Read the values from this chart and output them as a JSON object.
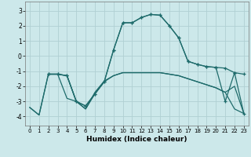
{
  "xlabel": "Humidex (Indice chaleur)",
  "bg_color": "#cce8ea",
  "grid_color": "#b0d0d3",
  "line_color": "#1e6b6b",
  "xlim": [
    -0.5,
    23.5
  ],
  "ylim": [
    -4.6,
    3.6
  ],
  "yticks": [
    -4,
    -3,
    -2,
    -1,
    0,
    1,
    2,
    3
  ],
  "xticks": [
    0,
    1,
    2,
    3,
    4,
    5,
    6,
    7,
    8,
    9,
    10,
    11,
    12,
    13,
    14,
    15,
    16,
    17,
    18,
    19,
    20,
    21,
    22,
    23
  ],
  "lines": [
    {
      "x": [
        0,
        1,
        2,
        3,
        4,
        5,
        6,
        7,
        8,
        9,
        10,
        11,
        12,
        13,
        14,
        15,
        16,
        17,
        18,
        19,
        20,
        21,
        22,
        23
      ],
      "y": [
        -3.4,
        -3.9,
        -1.2,
        -1.2,
        -1.3,
        -3.0,
        -3.5,
        -2.5,
        -1.7,
        -1.3,
        -1.1,
        -1.1,
        -1.1,
        -1.1,
        -1.1,
        -1.2,
        -1.3,
        -1.5,
        -1.7,
        -1.9,
        -2.1,
        -2.4,
        -3.5,
        -3.8
      ],
      "marker": false,
      "linewidth": 0.9
    },
    {
      "x": [
        0,
        1,
        2,
        3,
        4,
        5,
        6,
        7,
        8,
        9,
        10,
        11,
        12,
        13,
        14,
        15,
        16,
        17,
        18,
        19,
        20,
        21,
        22,
        23
      ],
      "y": [
        -3.4,
        -3.9,
        -1.2,
        -1.2,
        -2.8,
        -3.0,
        -3.5,
        -2.4,
        -1.65,
        -1.3,
        -1.1,
        -1.1,
        -1.1,
        -1.1,
        -1.1,
        -1.2,
        -1.3,
        -1.5,
        -1.7,
        -1.9,
        -2.1,
        -2.4,
        -2.0,
        -3.8
      ],
      "marker": false,
      "linewidth": 0.9
    },
    {
      "x": [
        2,
        3,
        4,
        5,
        6,
        7,
        8,
        9,
        10,
        11,
        12,
        13,
        14,
        15,
        16,
        17,
        18,
        19,
        20,
        21,
        22,
        23
      ],
      "y": [
        -1.2,
        -1.2,
        -1.3,
        -3.0,
        -3.3,
        -2.5,
        -1.7,
        0.4,
        2.2,
        2.2,
        2.55,
        2.75,
        2.7,
        2.0,
        1.2,
        -0.35,
        -0.55,
        -0.7,
        -0.75,
        -0.8,
        -1.1,
        -1.2
      ],
      "marker": true,
      "linewidth": 0.9
    },
    {
      "x": [
        2,
        3,
        4,
        5,
        6,
        7,
        8,
        9,
        10,
        11,
        12,
        13,
        14,
        15,
        16,
        17,
        18,
        19,
        20,
        21,
        22,
        23
      ],
      "y": [
        -1.2,
        -1.2,
        -1.3,
        -3.0,
        -3.3,
        -2.5,
        -1.7,
        0.4,
        2.2,
        2.2,
        2.55,
        2.75,
        2.7,
        2.0,
        1.2,
        -0.35,
        -0.55,
        -0.7,
        -0.75,
        -3.0,
        -1.1,
        -3.8
      ],
      "marker": true,
      "linewidth": 0.9
    }
  ]
}
